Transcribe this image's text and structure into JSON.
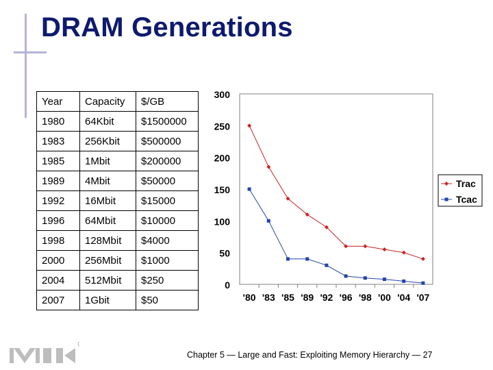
{
  "slide": {
    "title": "DRAM Generations",
    "footer": "Chapter 5 — Large and Fast: Exploiting Memory Hierarchy — 27"
  },
  "table": {
    "headers": [
      "Year",
      "Capacity",
      "$/GB"
    ],
    "rows": [
      [
        "1980",
        "64Kbit",
        "$1500000"
      ],
      [
        "1983",
        "256Kbit",
        "$500000"
      ],
      [
        "1985",
        "1Mbit",
        "$200000"
      ],
      [
        "1989",
        "4Mbit",
        "$50000"
      ],
      [
        "1992",
        "16Mbit",
        "$15000"
      ],
      [
        "1996",
        "64Mbit",
        "$10000"
      ],
      [
        "1998",
        "128Mbit",
        "$4000"
      ],
      [
        "2000",
        "256Mbit",
        "$1000"
      ],
      [
        "2004",
        "512Mbit",
        "$250"
      ],
      [
        "2007",
        "1Gbit",
        "$50"
      ]
    ]
  },
  "chart_data": {
    "type": "line",
    "categories": [
      "'80",
      "'83",
      "'85",
      "'89",
      "'92",
      "'96",
      "'98",
      "'00",
      "'04",
      "'07"
    ],
    "series": [
      {
        "name": "Trac",
        "color": "#cc2222",
        "marker": "diamond",
        "values": [
          250,
          185,
          135,
          110,
          90,
          60,
          60,
          55,
          50,
          40
        ]
      },
      {
        "name": "Tcac",
        "color": "#2244aa",
        "marker": "square",
        "values": [
          150,
          100,
          40,
          40,
          30,
          13,
          10,
          8,
          5,
          2
        ]
      }
    ],
    "yticks": [
      0,
      50,
      100,
      150,
      200,
      250,
      300
    ],
    "ylim": [
      0,
      300
    ],
    "legend": "right",
    "grid": false
  }
}
